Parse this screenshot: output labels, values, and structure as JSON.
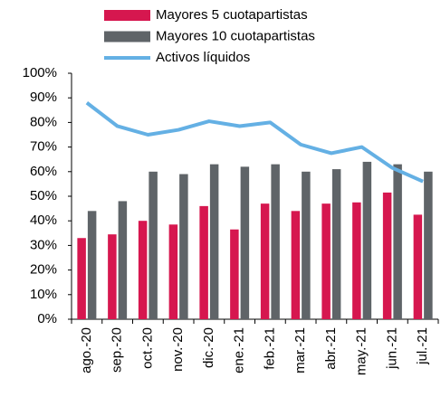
{
  "chart_data": {
    "type": "bar",
    "categories": [
      "ago.-20",
      "sep.-20",
      "oct.-20",
      "nov.-20",
      "dic.-20",
      "ene.-21",
      "feb.-21",
      "mar.-21",
      "abr.-21",
      "may.-21",
      "jun.-21",
      "jul.-21"
    ],
    "series": [
      {
        "name": "Mayores 5 cuotapartistas",
        "type": "bar",
        "color": "#d6174f",
        "values": [
          33,
          34.5,
          40,
          38.5,
          46,
          36.5,
          47,
          44,
          47,
          47.5,
          51.5,
          42.5
        ]
      },
      {
        "name": "Mayores 10 cuotapartistas",
        "type": "bar",
        "color": "#5f6468",
        "values": [
          44,
          48,
          60,
          59,
          63,
          62,
          63,
          60,
          61,
          64,
          63,
          60
        ]
      },
      {
        "name": "Activos líquidos",
        "type": "line",
        "color": "#64b0e4",
        "values": [
          88,
          78.5,
          75,
          77,
          80.5,
          78.5,
          80,
          71,
          67.5,
          70,
          61.5,
          56
        ]
      }
    ],
    "ylim": [
      0,
      100
    ],
    "yticks": [
      {
        "value": 0,
        "label": "0%"
      },
      {
        "value": 10,
        "label": "10%"
      },
      {
        "value": 20,
        "label": "20%"
      },
      {
        "value": 30,
        "label": "30%"
      },
      {
        "value": 40,
        "label": "40%"
      },
      {
        "value": 50,
        "label": "50%"
      },
      {
        "value": 60,
        "label": "60%"
      },
      {
        "value": 70,
        "label": "70%"
      },
      {
        "value": 80,
        "label": "80%"
      },
      {
        "value": 90,
        "label": "90%"
      },
      {
        "value": 100,
        "label": "100%"
      }
    ],
    "legend": "top"
  }
}
